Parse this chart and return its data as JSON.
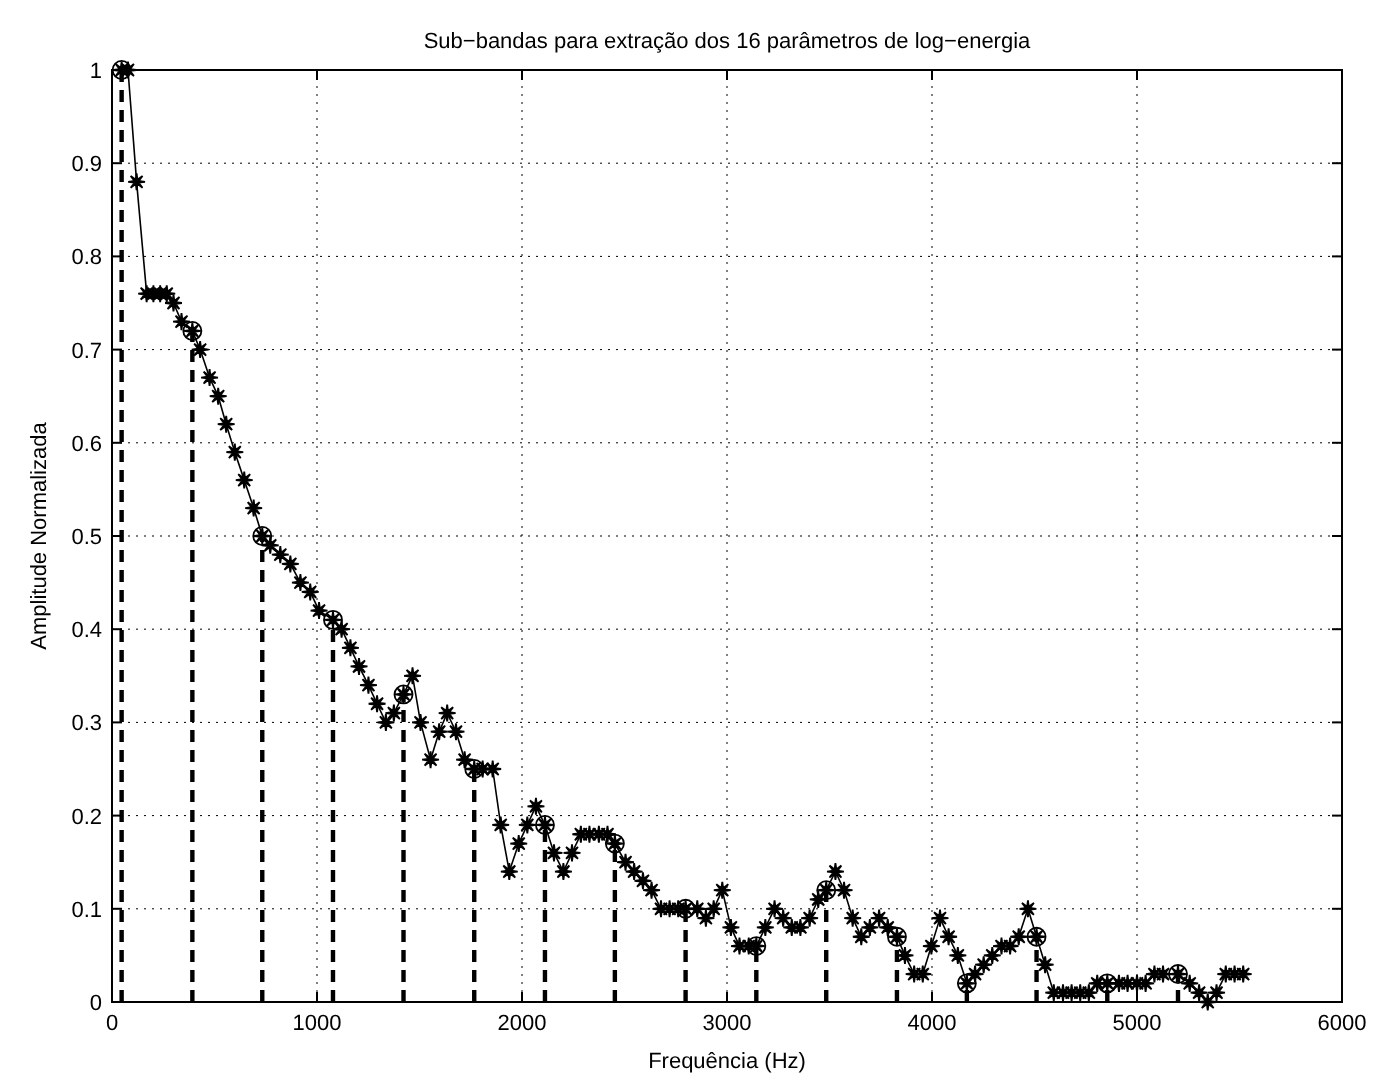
{
  "chart_data": {
    "type": "line",
    "title": "Sub−bandas para extração dos 16 parâmetros de log−energia",
    "xlabel": "Frequência (Hz)",
    "ylabel": "Amplitude Normalizada",
    "xlim": [
      0,
      6000
    ],
    "xticks": [
      0,
      1000,
      2000,
      3000,
      4000,
      5000,
      6000
    ],
    "ylim": [
      0,
      1
    ],
    "yticks": [
      0,
      0.1,
      0.2,
      0.3,
      0.4,
      0.5,
      0.6,
      0.7,
      0.8,
      0.9,
      1
    ],
    "grid": true,
    "series": [
      {
        "color": "#000000",
        "marker": "star",
        "line_style": "solid",
        "x": [
          47,
          78,
          120,
          169,
          202,
          235,
          267,
          300,
          339,
          392,
          430,
          476,
          518,
          557,
          599,
          645,
          691,
          733,
          772,
          821,
          870,
          919,
          967,
          1010,
          1078,
          1120,
          1163,
          1205,
          1251,
          1293,
          1336,
          1375,
          1422,
          1466,
          1505,
          1554,
          1596,
          1635,
          1678,
          1720,
          1767,
          1808,
          1857,
          1896,
          1938,
          1984,
          2026,
          2068,
          2112,
          2156,
          2202,
          2244,
          2287,
          2329,
          2375,
          2417,
          2453,
          2505,
          2547,
          2590,
          2632,
          2678,
          2720,
          2762,
          2798,
          2855,
          2897,
          2935,
          2977,
          3019,
          3061,
          3106,
          3143,
          3187,
          3232,
          3274,
          3316,
          3358,
          3403,
          3445,
          3484,
          3529,
          3571,
          3613,
          3655,
          3697,
          3742,
          3784,
          3829,
          3868,
          3913,
          3955,
          3997,
          4039,
          4081,
          4126,
          4170,
          4210,
          4252,
          4294,
          4339,
          4381,
          4423,
          4468,
          4510,
          4552,
          4594,
          4639,
          4681,
          4723,
          4765,
          4806,
          4855,
          4912,
          4954,
          5000,
          5042,
          5085,
          5127,
          5200,
          5257,
          5303,
          5345,
          5388,
          5433,
          5476,
          5518
        ],
        "values": [
          1.0,
          1.0,
          0.88,
          0.76,
          0.76,
          0.76,
          0.76,
          0.75,
          0.73,
          0.72,
          0.7,
          0.67,
          0.65,
          0.62,
          0.59,
          0.56,
          0.53,
          0.5,
          0.49,
          0.48,
          0.47,
          0.45,
          0.44,
          0.42,
          0.41,
          0.4,
          0.38,
          0.36,
          0.34,
          0.32,
          0.3,
          0.31,
          0.33,
          0.35,
          0.3,
          0.26,
          0.29,
          0.31,
          0.29,
          0.26,
          0.25,
          0.25,
          0.25,
          0.19,
          0.14,
          0.17,
          0.19,
          0.21,
          0.19,
          0.16,
          0.14,
          0.16,
          0.18,
          0.18,
          0.18,
          0.18,
          0.17,
          0.15,
          0.14,
          0.13,
          0.12,
          0.1,
          0.1,
          0.1,
          0.1,
          0.1,
          0.09,
          0.1,
          0.12,
          0.08,
          0.06,
          0.06,
          0.06,
          0.08,
          0.1,
          0.09,
          0.08,
          0.08,
          0.09,
          0.11,
          0.12,
          0.14,
          0.12,
          0.09,
          0.07,
          0.08,
          0.09,
          0.08,
          0.07,
          0.05,
          0.03,
          0.03,
          0.06,
          0.09,
          0.07,
          0.05,
          0.02,
          0.03,
          0.04,
          0.05,
          0.06,
          0.06,
          0.07,
          0.1,
          0.07,
          0.04,
          0.01,
          0.01,
          0.01,
          0.01,
          0.01,
          0.02,
          0.02,
          0.02,
          0.02,
          0.02,
          0.02,
          0.03,
          0.03,
          0.03,
          0.02,
          0.01,
          0.0,
          0.01,
          0.03,
          0.03,
          0.03
        ]
      },
      {
        "type": "lollipop",
        "color": "#000000",
        "marker": "circle",
        "line_style": "dashed",
        "x": [
          47,
          392,
          733,
          1078,
          1422,
          1767,
          2112,
          2453,
          2798,
          3143,
          3484,
          3829,
          4170,
          4510,
          4855,
          5200
        ],
        "values": [
          1.0,
          0.72,
          0.5,
          0.41,
          0.33,
          0.25,
          0.19,
          0.17,
          0.1,
          0.06,
          0.12,
          0.07,
          0.02,
          0.07,
          0.02,
          0.03
        ]
      }
    ]
  }
}
